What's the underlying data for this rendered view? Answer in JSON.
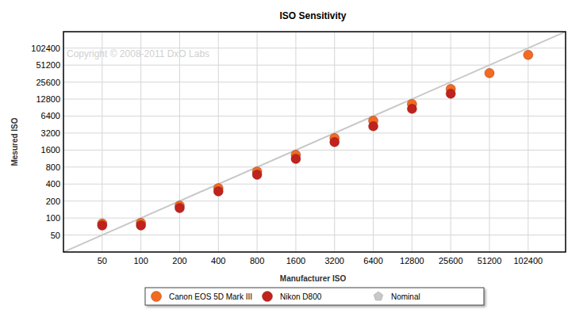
{
  "chart_data": {
    "type": "scatter",
    "title": "ISO Sensitivity",
    "x_label": "Manufacturer ISO",
    "y_label": "Mesured ISO",
    "annotation": "Copyright © 2008-2011 DxO Labs",
    "log": true,
    "grid": true,
    "legend": "bottom",
    "x": [
      50,
      100,
      200,
      400,
      800,
      1600,
      3200,
      6400,
      12800,
      25600,
      51200,
      102400
    ],
    "xlim": [
      25,
      200000
    ],
    "ylim": [
      25,
      200000
    ],
    "xticks": [
      50,
      100,
      200,
      400,
      800,
      1600,
      3200,
      6400,
      12800,
      25600,
      51200,
      102400
    ],
    "yticks": [
      50,
      100,
      200,
      400,
      800,
      1600,
      3200,
      6400,
      12800,
      25600,
      51200,
      102400
    ],
    "series": [
      {
        "name": "Canon EOS 5D Mark III",
        "color": "#f26b21",
        "marker": "circle",
        "values": [
          80,
          82,
          166,
          338,
          667,
          1317,
          2600,
          5300,
          10470,
          19400,
          37000,
          77750
        ]
      },
      {
        "name": "Nikon D800",
        "color": "#c0221d",
        "marker": "circle",
        "values": [
          74,
          74,
          150,
          297,
          586,
          1120,
          2215,
          4226,
          8600,
          15970,
          null,
          null
        ]
      },
      {
        "name": "Nominal",
        "type": "line",
        "color": "#c8c8c8",
        "marker": "pentagon",
        "x": [
          25,
          200000
        ],
        "values": [
          25,
          200000
        ]
      }
    ]
  }
}
